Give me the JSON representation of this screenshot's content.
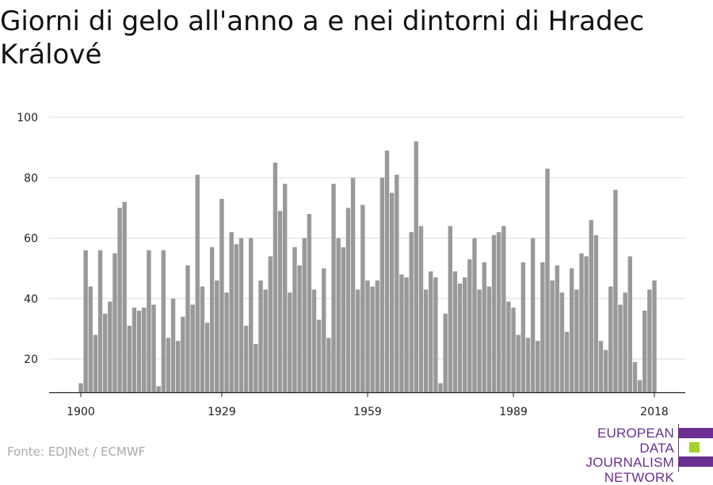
{
  "chart_data": {
    "type": "bar",
    "title": "Giorni di gelo all'anno a e nei dintorni di Hradec Králové",
    "xlabel": "",
    "ylabel": "",
    "x_start": 1900,
    "x_end": 2018,
    "x_ticks": [
      1900,
      1929,
      1959,
      1989,
      2018
    ],
    "y_ticks": [
      20,
      40,
      60,
      80,
      100
    ],
    "ylim": [
      9,
      100
    ],
    "grid": true,
    "color": "#999999",
    "values": [
      12,
      56,
      44,
      28,
      56,
      35,
      39,
      55,
      70,
      72,
      31,
      37,
      36,
      37,
      56,
      38,
      11,
      56,
      27,
      40,
      26,
      34,
      51,
      38,
      81,
      44,
      32,
      57,
      46,
      73,
      42,
      62,
      58,
      60,
      31,
      60,
      25,
      46,
      43,
      54,
      85,
      69,
      78,
      42,
      57,
      51,
      60,
      68,
      43,
      33,
      50,
      27,
      78,
      60,
      57,
      70,
      80,
      43,
      71,
      46,
      44,
      46,
      80,
      89,
      75,
      81,
      48,
      47,
      62,
      92,
      64,
      43,
      49,
      47,
      12,
      35,
      64,
      49,
      45,
      47,
      53,
      60,
      43,
      52,
      44,
      61,
      62,
      64,
      39,
      37,
      28,
      52,
      27,
      60,
      26,
      52,
      83,
      46,
      51,
      42,
      29,
      50,
      43,
      55,
      54,
      66,
      61,
      26,
      23,
      44,
      76,
      38,
      42,
      54,
      19,
      13,
      36,
      43,
      46
    ]
  },
  "source": "Fonte: EDJNet / ECMWF",
  "logo": {
    "lines": [
      "EUROPEAN",
      "DATA JOURNALISM",
      "NETWORK"
    ],
    "colors": [
      "#6a2f91",
      "#a3d12a",
      "#6a2f91"
    ]
  }
}
